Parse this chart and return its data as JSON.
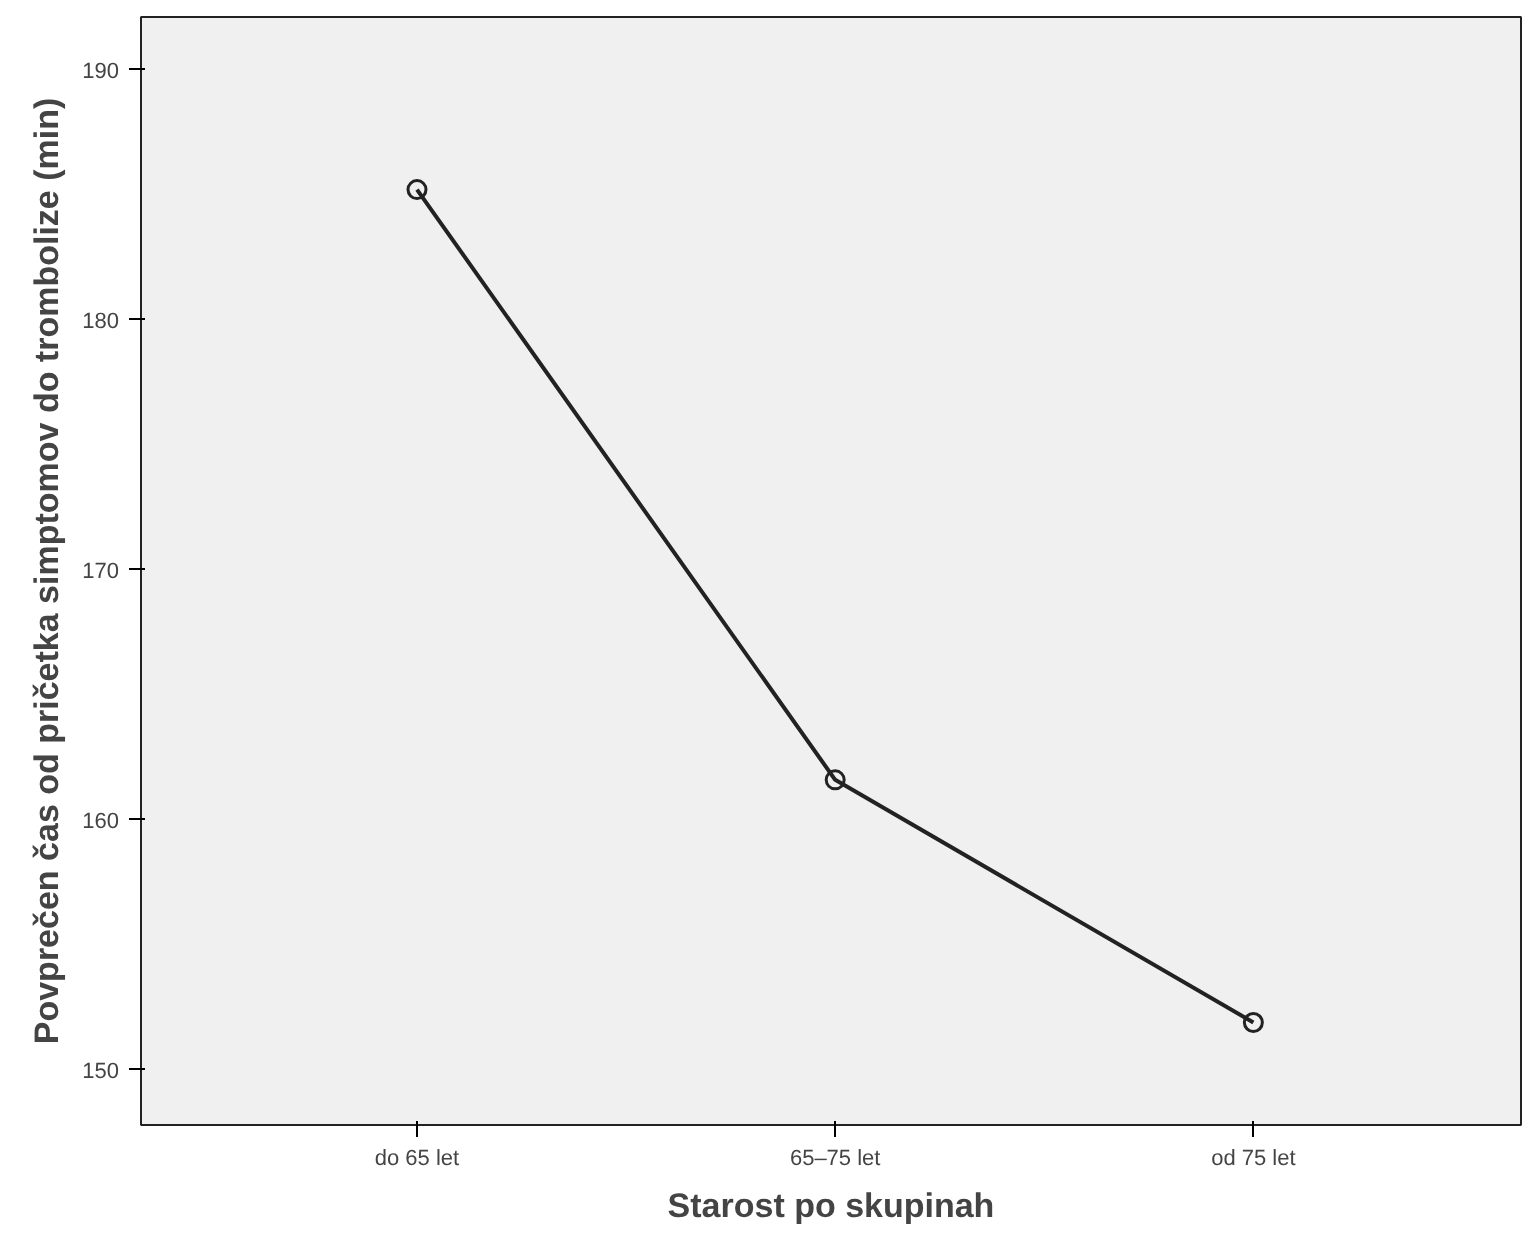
{
  "chart_data": {
    "type": "line",
    "xlabel": "Starost po skupinah",
    "ylabel": "Povprečen čas od pričetka simptomov do trombolize (min)",
    "categories": [
      "do 65 let",
      "65–75 let",
      "od 75 let"
    ],
    "series": [
      {
        "color": "#222222",
        "values": [
          185.2,
          161.6,
          151.9
        ]
      }
    ],
    "ylim": [
      147.8,
      192.1
    ],
    "yticks": [
      150,
      160,
      170,
      180,
      190
    ],
    "grid": false,
    "marker": "circle",
    "line_style": "solid"
  }
}
